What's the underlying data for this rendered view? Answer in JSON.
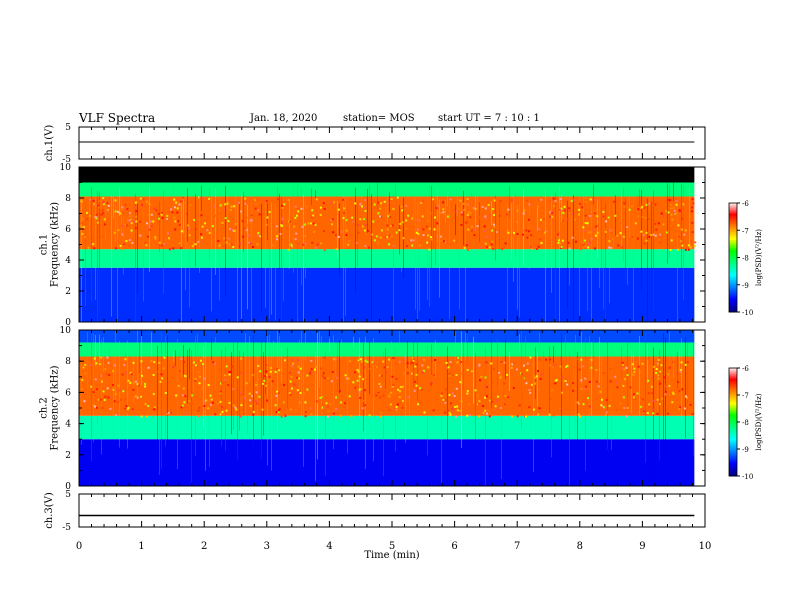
{
  "header": {
    "title": "VLF Spectra",
    "date": "Jan. 18, 2020",
    "station": "station= MOS",
    "start_ut": "start UT =   7 : 10 : 1"
  },
  "chart_data": [
    {
      "type": "line",
      "panel": "ch.1 waveform",
      "ylabel": "ch.1(V)",
      "ylim": [
        -5,
        5
      ],
      "yticks": [
        "5",
        "-5"
      ],
      "series": [
        {
          "x": [
            0,
            9.83
          ],
          "values": [
            0.3,
            0.3
          ]
        }
      ],
      "color": "#000000"
    },
    {
      "type": "heatmap",
      "panel": "ch.1 spectrogram",
      "ylabel": "ch.1\nFrequency (kHz)",
      "ylim": [
        0,
        10
      ],
      "yticks": [
        "0",
        "2",
        "4",
        "6",
        "8",
        "10"
      ],
      "x_range_min": [
        0,
        9.83
      ],
      "bands_khz": [
        {
          "from": 0.0,
          "to": 3.5,
          "level": -9.4
        },
        {
          "from": 3.5,
          "to": 4.7,
          "level": -8.3
        },
        {
          "from": 4.7,
          "to": 8.1,
          "level": -6.8
        },
        {
          "from": 8.1,
          "to": 9.0,
          "level": -8.2
        },
        {
          "from": 9.0,
          "to": 10.0,
          "level": "no data"
        }
      ],
      "colorbar": {
        "label": "log(PSD)(V²/Hz)",
        "range": [
          -10,
          -6
        ],
        "ticks": [
          "-6",
          "-7",
          "-8",
          "-9",
          "-10"
        ]
      }
    },
    {
      "type": "heatmap",
      "panel": "ch.2 spectrogram",
      "ylabel": "ch.2\nFrequency (kHz)",
      "ylim": [
        0,
        10
      ],
      "yticks": [
        "0",
        "2",
        "4",
        "6",
        "8",
        "10"
      ],
      "x_range_min": [
        0,
        9.83
      ],
      "bands_khz": [
        {
          "from": 0.0,
          "to": 3.0,
          "level": -9.6
        },
        {
          "from": 3.0,
          "to": 4.5,
          "level": -8.4
        },
        {
          "from": 4.5,
          "to": 8.3,
          "level": -6.8
        },
        {
          "from": 8.3,
          "to": 9.2,
          "level": -8.2
        },
        {
          "from": 9.2,
          "to": 10.0,
          "level": -9.3
        }
      ],
      "colorbar": {
        "label": "log(PSD)(V²/Hz)",
        "range": [
          -10,
          -6
        ],
        "ticks": [
          "-6",
          "-7",
          "-8",
          "-9",
          "-10"
        ]
      }
    },
    {
      "type": "line",
      "panel": "ch.3 waveform",
      "ylabel": "ch.3(V)",
      "ylim": [
        -5,
        5
      ],
      "yticks": [
        "5",
        "-5"
      ],
      "series": [
        {
          "x": [
            0,
            9.83
          ],
          "values": [
            -1.5,
            -1.5
          ]
        }
      ],
      "color": "#000000"
    }
  ],
  "x_axis": {
    "label": "Time (min)",
    "range": [
      0,
      10
    ],
    "ticks": [
      "0",
      "1",
      "2",
      "3",
      "4",
      "5",
      "6",
      "7",
      "8",
      "9",
      "10"
    ]
  },
  "colormap": [
    "#000080",
    "#0000ff",
    "#0080ff",
    "#00ffff",
    "#00ff80",
    "#00ff00",
    "#ffff00",
    "#ff8000",
    "#ff0000",
    "#ffffff"
  ]
}
